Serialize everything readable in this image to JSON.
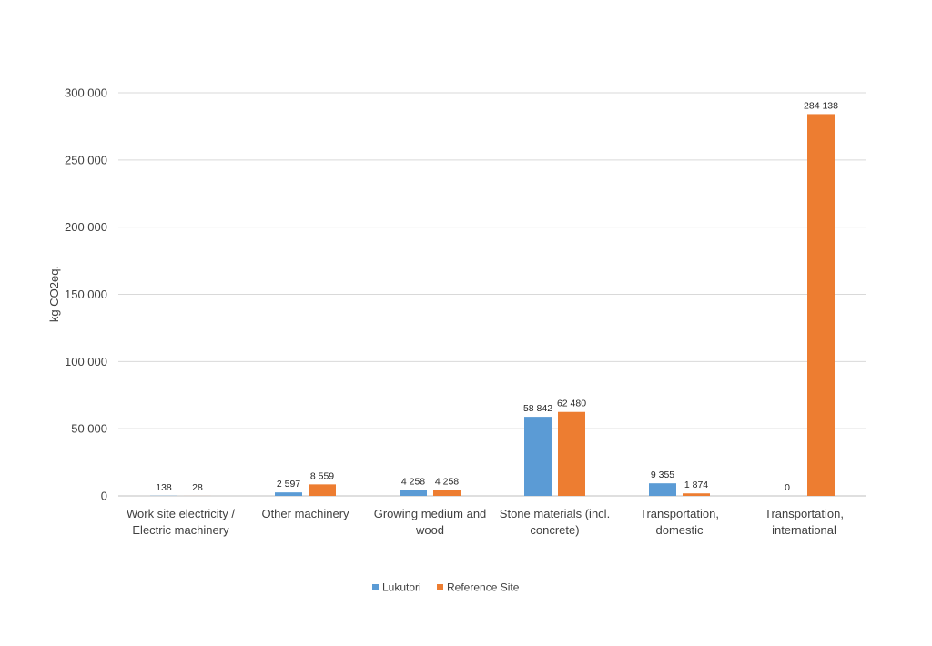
{
  "chart_data": {
    "type": "bar",
    "categories": [
      [
        "Work site electricity /",
        "Electric machinery"
      ],
      [
        "Other machinery"
      ],
      [
        "Growing medium and",
        "wood"
      ],
      [
        "Stone materials (incl.",
        "concrete)"
      ],
      [
        "Transportation,",
        "domestic"
      ],
      [
        "Transportation,",
        "international"
      ]
    ],
    "series": [
      {
        "name": "Lukutori",
        "color": "#5b9bd5",
        "values": [
          138,
          2597,
          4258,
          58842,
          9355,
          0
        ],
        "labels": [
          "138",
          "2 597",
          "4 258",
          "58 842",
          "9 355",
          "0"
        ]
      },
      {
        "name": "Reference Site",
        "color": "#ed7d31",
        "values": [
          28,
          8559,
          4258,
          62480,
          1874,
          284138
        ],
        "labels": [
          "28",
          "8 559",
          "4 258",
          "62 480",
          "1 874",
          "284 138"
        ]
      }
    ],
    "ylabel": "kg CO2eq.",
    "xlabel": "",
    "title": "",
    "ylim": [
      0,
      300000
    ],
    "yticks": [
      0,
      50000,
      100000,
      150000,
      200000,
      250000,
      300000
    ],
    "ytick_labels": [
      "0",
      "50 000",
      "100 000",
      "150 000",
      "200 000",
      "250 000",
      "300 000"
    ],
    "grid": "horizontal",
    "legend_position": "bottom"
  }
}
